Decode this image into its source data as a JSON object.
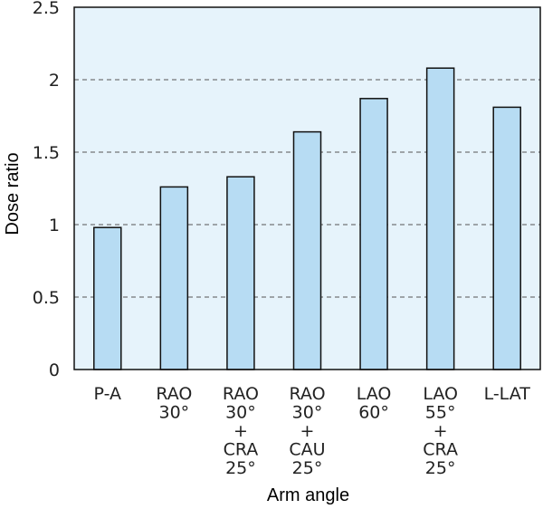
{
  "chart_data": {
    "type": "bar",
    "categories": [
      [
        "P-A"
      ],
      [
        "RAO",
        "30°"
      ],
      [
        "RAO",
        "30°",
        "+",
        "CRA",
        "25°"
      ],
      [
        "RAO",
        "30°",
        "+",
        "CAU",
        "25°"
      ],
      [
        "LAO",
        "60°"
      ],
      [
        "LAO",
        "55°",
        "+",
        "CRA",
        "25°"
      ],
      [
        "L-LAT"
      ]
    ],
    "values": [
      0.98,
      1.26,
      1.33,
      1.64,
      1.87,
      2.08,
      1.81
    ],
    "ylim": [
      0,
      2.5
    ],
    "yticks": [
      0,
      0.5,
      1,
      1.5,
      2,
      2.5
    ],
    "ytick_labels": [
      "0",
      "0.5",
      "1",
      "1.5",
      "2",
      "2.5"
    ],
    "xlabel": "Arm angle",
    "ylabel": "Dose ratio",
    "grid": "horizontal dashed",
    "colors": {
      "plot_background": "#e6f3fb",
      "bar_fill": "#b7dcf3",
      "bar_stroke": "#111111",
      "grid": "#555555"
    }
  }
}
